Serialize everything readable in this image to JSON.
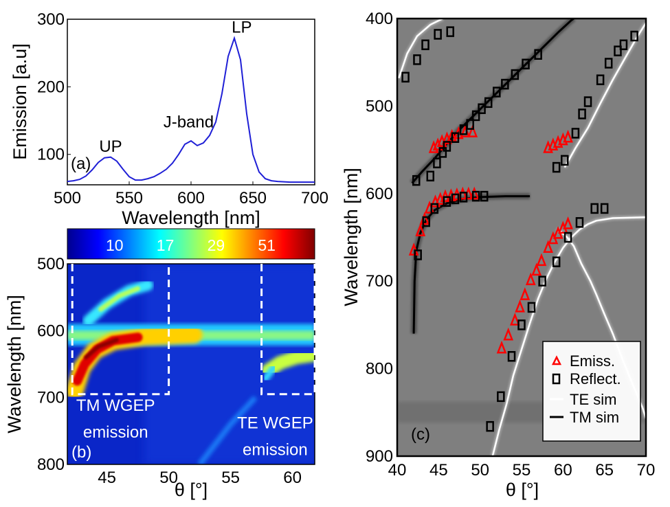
{
  "chart_data": [
    {
      "id": "a",
      "type": "line",
      "panel_label": "(a)",
      "xlabel": "Wavelength [nm]",
      "ylabel": "Emission [a.u]",
      "xlim": [
        500,
        700
      ],
      "ylim": [
        55,
        300
      ],
      "xticks": [
        500,
        550,
        600,
        650,
        700
      ],
      "yticks": [
        100,
        200,
        300
      ],
      "color": "#1f1fd6",
      "series": [
        {
          "name": "Emission",
          "x": [
            500,
            505,
            510,
            515,
            520,
            525,
            530,
            535,
            540,
            545,
            550,
            555,
            560,
            565,
            570,
            575,
            580,
            585,
            590,
            595,
            600,
            605,
            610,
            615,
            620,
            625,
            630,
            635,
            640,
            645,
            650,
            655,
            660,
            665,
            670,
            675,
            680,
            685,
            690,
            695,
            700
          ],
          "y": [
            60,
            61,
            63,
            68,
            77,
            88,
            95,
            96,
            90,
            78,
            67,
            62,
            62,
            64,
            67,
            72,
            78,
            87,
            100,
            115,
            120,
            113,
            117,
            128,
            148,
            190,
            245,
            272,
            240,
            160,
            100,
            74,
            64,
            61,
            60,
            59.5,
            59,
            59,
            59,
            59,
            59
          ]
        }
      ],
      "annotations": [
        {
          "text": "UP",
          "x": 535,
          "y": 104
        },
        {
          "text": "J-band",
          "x": 598,
          "y": 140
        },
        {
          "text": "LP",
          "x": 641,
          "y": 280
        }
      ]
    },
    {
      "id": "b",
      "type": "heatmap",
      "panel_label": "(b)",
      "xlabel": "θ [°]",
      "ylabel": "Wavelength [nm]",
      "xlim": [
        41.8,
        61.8
      ],
      "ylim": [
        500,
        800
      ],
      "xticks": [
        45,
        50,
        55,
        60
      ],
      "yticks": [
        500,
        600,
        700,
        800
      ],
      "colorbar_ticks": [
        "10",
        "17",
        "29",
        "51"
      ],
      "colorbar_colors": [
        "#00008f",
        "#0000ff",
        "#0080ff",
        "#00ffff",
        "#80ff80",
        "#ffff00",
        "#ff8000",
        "#ff0000",
        "#800000"
      ],
      "boxes": [
        {
          "x0": 42.2,
          "x1": 50.0,
          "y0": 500,
          "y1": 695
        },
        {
          "x0": 57.5,
          "x1": 61.8,
          "y0": 500,
          "y1": 695
        }
      ],
      "annotations": [
        {
          "text": "TM WGEP",
          "x": 45.7,
          "y": 720
        },
        {
          "text": "emission",
          "x": 45.7,
          "y": 760
        },
        {
          "text": "TE WGEP",
          "x": 58.6,
          "y": 746
        },
        {
          "text": "emission",
          "x": 58.6,
          "y": 786
        }
      ]
    },
    {
      "id": "c",
      "type": "scatter",
      "panel_label": "(c)",
      "xlabel": "θ [°]",
      "ylabel": "Wavelength [nm]",
      "xlim": [
        40,
        70
      ],
      "ylim": [
        400,
        900
      ],
      "xticks": [
        40,
        45,
        50,
        55,
        60,
        65,
        70
      ],
      "yticks": [
        400,
        500,
        600,
        700,
        800,
        900
      ],
      "series": [
        {
          "name": "Emiss.",
          "marker": "triangle",
          "color": "#ff0000",
          "points": [
            [
              42,
              665
            ],
            [
              42.8,
              643
            ],
            [
              43.3,
              630
            ],
            [
              43.9,
              617
            ],
            [
              44.6,
              610
            ],
            [
              45.2,
              607
            ],
            [
              45.8,
              604
            ],
            [
              46.5,
              603
            ],
            [
              47.2,
              602
            ],
            [
              47.9,
              601
            ],
            [
              48.6,
              601
            ],
            [
              49.3,
              601
            ],
            [
              44.4,
              548
            ],
            [
              44.9,
              545
            ],
            [
              45.4,
              541
            ],
            [
              46,
              538
            ],
            [
              46.6,
              535
            ],
            [
              47.4,
              532
            ],
            [
              48.2,
              530
            ],
            [
              49.1,
              530
            ],
            [
              58.2,
              548
            ],
            [
              58.8,
              545
            ],
            [
              59.4,
              542
            ],
            [
              60,
              539
            ],
            [
              60.6,
              536
            ],
            [
              52.6,
              777
            ],
            [
              53.4,
              762
            ],
            [
              54.2,
              745
            ],
            [
              54.8,
              730
            ],
            [
              55.4,
              716
            ],
            [
              56.1,
              699
            ],
            [
              56.8,
              688
            ],
            [
              57.4,
              677
            ],
            [
              58.2,
              662
            ],
            [
              58.8,
              652
            ],
            [
              59.4,
              646
            ],
            [
              60,
              640
            ],
            [
              60.6,
              635
            ]
          ]
        },
        {
          "name": "Reflect.",
          "marker": "square",
          "color": "#000000",
          "points": [
            [
              41,
              467
            ],
            [
              42.4,
              447
            ],
            [
              43.4,
              430
            ],
            [
              44.9,
              418
            ],
            [
              46.4,
              415
            ],
            [
              45.5,
              553
            ],
            [
              46,
              546
            ],
            [
              47,
              536
            ],
            [
              48,
              527
            ],
            [
              48.8,
              521
            ],
            [
              49.5,
              511
            ],
            [
              50.2,
              503
            ],
            [
              51,
              496
            ],
            [
              52,
              484
            ],
            [
              53,
              475
            ],
            [
              54.2,
              464
            ],
            [
              55.5,
              452
            ],
            [
              57,
              441
            ],
            [
              42.3,
              585
            ],
            [
              44,
              580
            ],
            [
              44.8,
              565
            ],
            [
              42.5,
              670
            ],
            [
              43.5,
              632
            ],
            [
              44.5,
              617
            ],
            [
              46,
              609
            ],
            [
              47,
              606
            ],
            [
              48,
              604
            ],
            [
              49.5,
              603
            ],
            [
              50.5,
              603
            ],
            [
              59.2,
              570
            ],
            [
              60.2,
              562
            ],
            [
              61.5,
              531
            ],
            [
              62.3,
              509
            ],
            [
              63,
              495
            ],
            [
              64.5,
              470
            ],
            [
              65.5,
              451
            ],
            [
              66.6,
              437
            ],
            [
              67.3,
              430
            ],
            [
              68.6,
              420
            ],
            [
              51.2,
              866
            ],
            [
              52.5,
              832
            ],
            [
              53.8,
              786
            ],
            [
              55,
              750
            ],
            [
              56.2,
              730
            ],
            [
              57.5,
              700
            ],
            [
              59.2,
              678
            ],
            [
              60.6,
              650
            ],
            [
              62,
              633
            ],
            [
              63.8,
              617
            ],
            [
              65,
              617
            ]
          ]
        }
      ],
      "legend": {
        "position": "bottom-right",
        "items": [
          "Emiss.",
          "Reflect.",
          "TE sim",
          "TM sim"
        ]
      },
      "sim_curves": [
        {
          "name": "TE sim",
          "color": "#ffffff",
          "points": [
            [
              40.2,
              468
            ],
            [
              41.2,
              440
            ],
            [
              42.4,
              420
            ],
            [
              44,
              407
            ],
            [
              45.5,
              400
            ]
          ]
        },
        {
          "name": "TE sim",
          "color": "#ffffff",
          "points": [
            [
              60.2,
              570
            ],
            [
              61.5,
              548
            ],
            [
              63,
              525
            ],
            [
              64.5,
              497
            ],
            [
              66,
              470
            ],
            [
              67.5,
              445
            ],
            [
              69,
              420
            ],
            [
              70,
              405
            ]
          ]
        },
        {
          "name": "TE sim",
          "color": "#ffffff",
          "points": [
            [
              59.3,
              640
            ],
            [
              60.5,
              650
            ],
            [
              61.3,
              660
            ],
            [
              62.2,
              680
            ],
            [
              63.3,
              700
            ],
            [
              64,
              715
            ],
            [
              65,
              738
            ],
            [
              66,
              760
            ],
            [
              67.2,
              790
            ],
            [
              68.4,
              818
            ],
            [
              69.6,
              845
            ],
            [
              70,
              857
            ]
          ]
        },
        {
          "name": "TE sim",
          "color": "#ffffff",
          "points": [
            [
              51.5,
              900
            ],
            [
              52.3,
              870
            ],
            [
              53.2,
              840
            ],
            [
              54,
              808
            ],
            [
              55,
              778
            ],
            [
              56,
              748
            ],
            [
              57,
              720
            ],
            [
              58,
              697
            ],
            [
              59,
              678
            ],
            [
              60,
              662
            ],
            [
              61,
              650
            ],
            [
              62,
              641
            ],
            [
              63,
              635
            ],
            [
              64,
              631
            ],
            [
              66,
              628
            ],
            [
              70,
              627
            ]
          ]
        },
        {
          "name": "TM sim",
          "color": "#000000",
          "points": [
            [
              41.8,
              588
            ],
            [
              43,
              575
            ],
            [
              44.5,
              560
            ],
            [
              46,
              543
            ],
            [
              47.5,
              527
            ],
            [
              49,
              513
            ],
            [
              50.5,
              499
            ],
            [
              52,
              485
            ],
            [
              53.5,
              471
            ],
            [
              55,
              457
            ],
            [
              56.5,
              443
            ],
            [
              58,
              429
            ],
            [
              59.5,
              415
            ],
            [
              61,
              402
            ],
            [
              61.3,
              400
            ]
          ]
        },
        {
          "name": "TM sim",
          "color": "#000000",
          "points": [
            [
              42,
              760
            ],
            [
              42.1,
              700
            ],
            [
              42.3,
              665
            ],
            [
              42.8,
              645
            ],
            [
              43.5,
              630
            ],
            [
              44.5,
              619
            ],
            [
              46,
              611
            ],
            [
              48,
              606
            ],
            [
              50,
              604
            ],
            [
              53,
              603
            ],
            [
              56,
              603
            ]
          ]
        }
      ]
    }
  ]
}
